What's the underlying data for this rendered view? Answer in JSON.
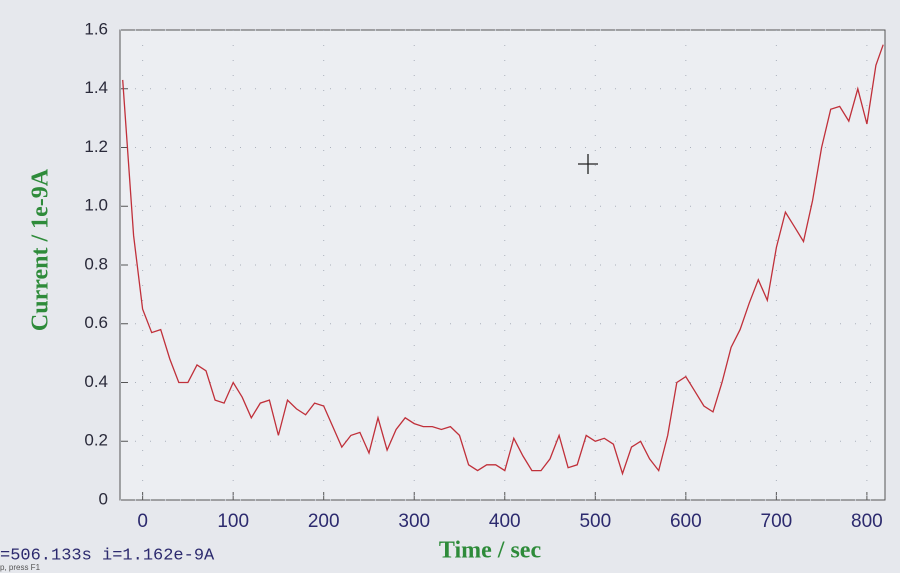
{
  "chart_data": {
    "type": "line",
    "xlabel": "Time / sec",
    "ylabel": "Current / 1e-9A",
    "xlim": [
      -25,
      820
    ],
    "ylim": [
      0,
      1.6
    ],
    "xticks": [
      0,
      100,
      200,
      300,
      400,
      500,
      600,
      700,
      800
    ],
    "yticks": [
      0,
      0.2,
      0.4,
      0.6,
      0.8,
      {
        "value": 1.0,
        "label": "1.0"
      },
      1.2,
      1.4,
      1.6
    ],
    "grid": true,
    "series": [
      {
        "color": "#c0303a",
        "x": [
          -22,
          -10,
          0,
          10,
          20,
          30,
          40,
          50,
          60,
          70,
          80,
          90,
          100,
          110,
          120,
          130,
          140,
          150,
          160,
          170,
          180,
          190,
          200,
          210,
          220,
          230,
          240,
          250,
          260,
          270,
          280,
          290,
          300,
          310,
          320,
          330,
          340,
          350,
          360,
          370,
          380,
          390,
          400,
          410,
          420,
          430,
          440,
          450,
          460,
          470,
          480,
          490,
          500,
          510,
          520,
          530,
          540,
          550,
          560,
          570,
          580,
          590,
          600,
          610,
          620,
          630,
          640,
          650,
          660,
          670,
          680,
          690,
          700,
          710,
          720,
          730,
          740,
          750,
          760,
          770,
          780,
          790,
          800,
          810,
          818
        ],
        "values": [
          1.43,
          0.9,
          0.65,
          0.57,
          0.58,
          0.48,
          0.4,
          0.4,
          0.46,
          0.44,
          0.34,
          0.33,
          0.4,
          0.35,
          0.28,
          0.33,
          0.34,
          0.22,
          0.34,
          0.31,
          0.29,
          0.33,
          0.32,
          0.25,
          0.18,
          0.22,
          0.23,
          0.16,
          0.28,
          0.17,
          0.24,
          0.28,
          0.26,
          0.25,
          0.25,
          0.24,
          0.25,
          0.22,
          0.12,
          0.1,
          0.12,
          0.12,
          0.1,
          0.21,
          0.15,
          0.1,
          0.1,
          0.14,
          0.22,
          0.11,
          0.12,
          0.22,
          0.2,
          0.21,
          0.19,
          0.09,
          0.18,
          0.2,
          0.14,
          0.1,
          0.22,
          0.4,
          0.42,
          0.37,
          0.32,
          0.3,
          0.4,
          0.52,
          0.58,
          0.67,
          0.75,
          0.68,
          0.86,
          0.98,
          0.93,
          0.88,
          1.02,
          1.2,
          1.33,
          1.34,
          1.29,
          1.4,
          1.28,
          1.48,
          1.55
        ]
      }
    ]
  },
  "status": {
    "readout": "=506.133s   i=1.162e-9A",
    "help": "p, press F1"
  }
}
